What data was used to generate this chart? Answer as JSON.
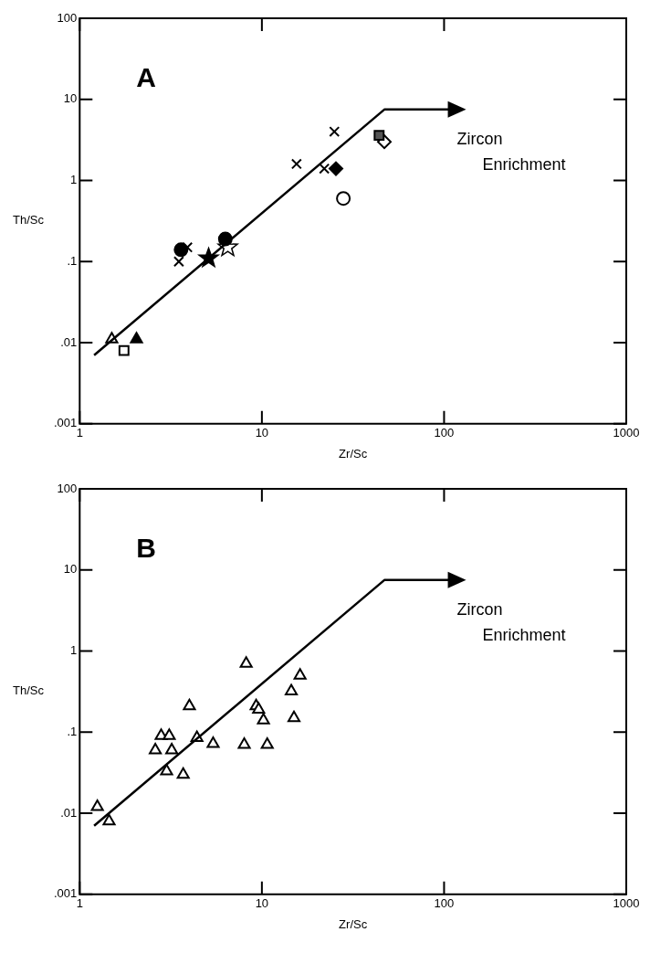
{
  "chart_data": [
    {
      "type": "scatter",
      "title": "A",
      "xlabel": "Zr/Sc",
      "ylabel": "Th/Sc",
      "log": "xy",
      "grid": false,
      "legend": false,
      "xlim": [
        1,
        1000
      ],
      "xticks": [
        1,
        10,
        100,
        1000
      ],
      "ylim": [
        0.001,
        100
      ],
      "yticks": [
        {
          "value": 0.001,
          "label": ".001"
        },
        {
          "value": 0.01,
          "label": ".01"
        },
        {
          "value": 0.1,
          "label": ".1"
        },
        1,
        10,
        100
      ],
      "annotations": [
        "Zircon Enrichment"
      ],
      "series": [
        {
          "type": "line",
          "marker": "none",
          "color": "#000000",
          "x": [
            1.2,
            47,
            115
          ],
          "values": [
            0.007,
            7.5,
            7.5
          ]
        },
        {
          "marker": "triangle",
          "color": "#ffffff",
          "x": [
            1.5
          ],
          "values": [
            0.011
          ]
        },
        {
          "marker": "square",
          "color": "#ffffff",
          "x": [
            1.75
          ],
          "values": [
            0.008
          ]
        },
        {
          "marker": "triangle",
          "color": "#000000",
          "x": [
            2.05
          ],
          "values": [
            0.011
          ]
        },
        {
          "marker": "cross",
          "color": "#000000",
          "x": [
            3.5,
            15.5,
            22,
            25
          ],
          "values": [
            0.1,
            1.6,
            1.4,
            4
          ]
        },
        {
          "marker": "circle",
          "color": "#000000",
          "x": [
            3.6,
            6.3
          ],
          "values": [
            0.14,
            0.19
          ]
        },
        {
          "marker": "cross",
          "color": "#000000",
          "x": [
            3.9
          ],
          "values": [
            0.15
          ]
        },
        {
          "marker": "star",
          "color": "#000000",
          "x": [
            5.1
          ],
          "values": [
            0.11
          ]
        },
        {
          "marker": "star",
          "color": "#ffffff",
          "x": [
            6.5
          ],
          "values": [
            0.15
          ]
        },
        {
          "marker": "diamond",
          "color": "#000000",
          "x": [
            25.5
          ],
          "values": [
            1.4
          ]
        },
        {
          "marker": "circle",
          "color": "#ffffff",
          "x": [
            28
          ],
          "values": [
            0.6
          ]
        },
        {
          "marker": "square",
          "color": "#555555",
          "x": [
            44
          ],
          "values": [
            3.6
          ]
        },
        {
          "marker": "diamond",
          "color": "#ffffff",
          "x": [
            47
          ],
          "values": [
            3.0
          ]
        }
      ]
    },
    {
      "type": "scatter",
      "title": "B",
      "xlabel": "Zr/Sc",
      "ylabel": "Th/Sc",
      "log": "xy",
      "grid": false,
      "legend": false,
      "xlim": [
        1,
        1000
      ],
      "xticks": [
        1,
        10,
        100,
        1000
      ],
      "ylim": [
        0.001,
        100
      ],
      "yticks": [
        {
          "value": 0.001,
          "label": ".001"
        },
        {
          "value": 0.01,
          "label": ".01"
        },
        {
          "value": 0.1,
          "label": ".1"
        },
        1,
        10,
        100
      ],
      "annotations": [
        "Zircon Enrichment"
      ],
      "series": [
        {
          "type": "line",
          "marker": "none",
          "color": "#000000",
          "x": [
            1.2,
            47,
            115
          ],
          "values": [
            0.007,
            7.5,
            7.5
          ]
        },
        {
          "marker": "triangle",
          "color": "#ffffff",
          "x": [
            1.25,
            1.45,
            2.6,
            2.8,
            3.1,
            3.2,
            3.0,
            3.7,
            4.0,
            4.4,
            5.4,
            8.0,
            8.2,
            9.3,
            9.6,
            10.2,
            10.7,
            14.5,
            15.0,
            16.2
          ],
          "values": [
            0.012,
            0.008,
            0.06,
            0.09,
            0.09,
            0.06,
            0.033,
            0.03,
            0.21,
            0.085,
            0.072,
            0.07,
            0.7,
            0.21,
            0.19,
            0.14,
            0.07,
            0.32,
            0.15,
            0.5
          ]
        }
      ]
    }
  ]
}
